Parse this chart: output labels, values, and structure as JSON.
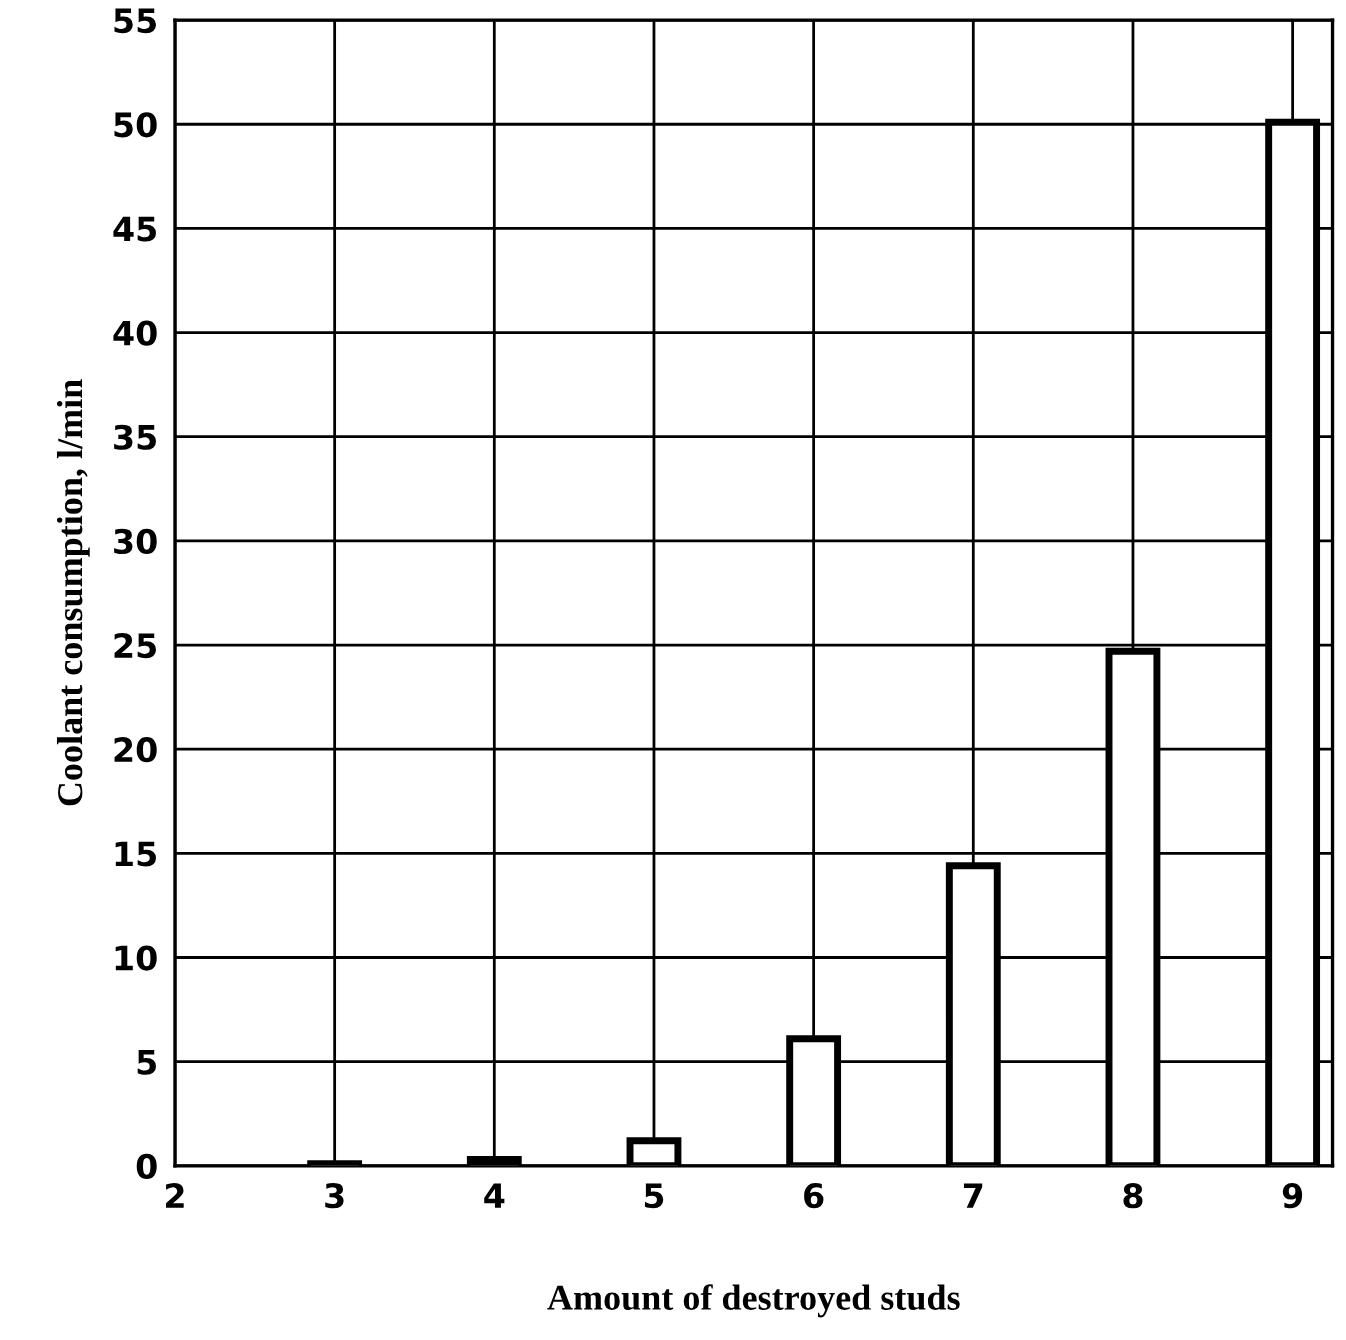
{
  "chart_data": {
    "type": "bar",
    "xlabel": "Amount of destroyed studs",
    "ylabel": "Coolant consumption, l/min",
    "x": [
      3,
      4,
      5,
      6,
      7,
      8,
      9
    ],
    "values": [
      0.1,
      0.3,
      1.2,
      6.1,
      14.4,
      24.7,
      50.1
    ],
    "color": "#ffffff",
    "xlim": [
      2,
      9.25
    ],
    "xticks": [
      2,
      3,
      4,
      5,
      6,
      7,
      8,
      9
    ],
    "ylim": [
      0,
      55
    ],
    "yticks": [
      0,
      5,
      10,
      15,
      20,
      25,
      30,
      35,
      40,
      45,
      50,
      55
    ],
    "grid": true
  }
}
